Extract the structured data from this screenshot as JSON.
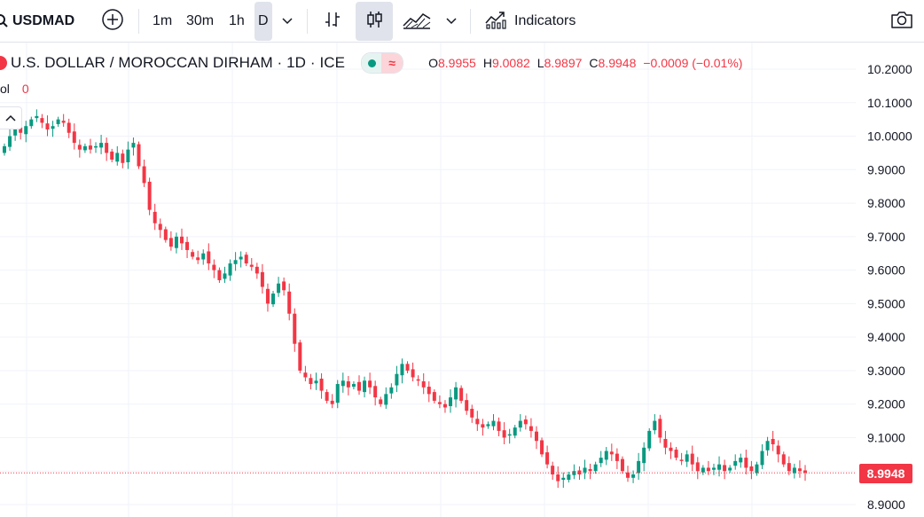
{
  "toolbar": {
    "symbol": "USDMAD",
    "timeframes": [
      "1m",
      "30m",
      "1h",
      "D"
    ],
    "active_timeframe": "D",
    "indicators_label": "Indicators"
  },
  "legend": {
    "title": "U.S. DOLLAR / MOROCCAN DIRHAM · 1D · ICE",
    "open_key": "O",
    "open": "8.9955",
    "high_key": "H",
    "high": "9.0082",
    "low_key": "L",
    "low": "8.9897",
    "close_key": "C",
    "close": "8.9948",
    "change": "−0.0009 (−0.01%)",
    "vol_label": "ol",
    "vol_value": "0",
    "wave_symbol": "≈"
  },
  "colors": {
    "up": "#089981",
    "down": "#f23645",
    "grid": "#f0f3fa"
  },
  "last_price": "8.9948",
  "chart_data": {
    "type": "candlestick",
    "ylim": [
      8.88,
      10.24
    ],
    "y_ticks": [
      "10.2000",
      "10.1000",
      "10.0000",
      "9.9000",
      "9.8000",
      "9.7000",
      "9.6000",
      "9.5000",
      "9.4000",
      "9.3000",
      "9.2000",
      "9.1000",
      "9.0000",
      "8.9000"
    ],
    "last": 8.9948,
    "closes": [
      9.97,
      10.0,
      10.02,
      10.01,
      10.03,
      10.05,
      10.06,
      10.04,
      10.02,
      10.03,
      10.05,
      10.04,
      10.01,
      9.98,
      9.96,
      9.97,
      9.96,
      9.97,
      9.98,
      9.95,
      9.93,
      9.95,
      9.92,
      9.96,
      9.98,
      9.91,
      9.86,
      9.78,
      9.74,
      9.72,
      9.69,
      9.67,
      9.7,
      9.68,
      9.66,
      9.64,
      9.63,
      9.65,
      9.62,
      9.6,
      9.57,
      9.59,
      9.62,
      9.63,
      9.64,
      9.62,
      9.61,
      9.59,
      9.55,
      9.5,
      9.53,
      9.56,
      9.54,
      9.47,
      9.38,
      9.3,
      9.28,
      9.26,
      9.27,
      9.24,
      9.21,
      9.2,
      9.26,
      9.27,
      9.25,
      9.26,
      9.24,
      9.27,
      9.25,
      9.22,
      9.2,
      9.23,
      9.25,
      9.29,
      9.32,
      9.3,
      9.28,
      9.27,
      9.25,
      9.23,
      9.21,
      9.2,
      9.19,
      9.22,
      9.25,
      9.21,
      9.18,
      9.16,
      9.14,
      9.13,
      9.14,
      9.15,
      9.12,
      9.1,
      9.11,
      9.13,
      9.15,
      9.14,
      9.12,
      9.09,
      9.05,
      9.02,
      8.99,
      8.97,
      8.98,
      8.99,
      9.0,
      8.99,
      9.01,
      9.0,
      9.02,
      9.04,
      9.06,
      9.05,
      9.03,
      9.0,
      8.98,
      8.99,
      9.03,
      9.07,
      9.12,
      9.15,
      9.1,
      9.07,
      9.06,
      9.04,
      9.03,
      9.05,
      9.02,
      9.0,
      9.01,
      9.0,
      9.01,
      9.02,
      9.0,
      9.01,
      9.03,
      9.04,
      9.01,
      9.0,
      9.02,
      9.06,
      9.09,
      9.08,
      9.05,
      9.02,
      9.0,
      9.01,
      9.0,
      8.995
    ]
  }
}
